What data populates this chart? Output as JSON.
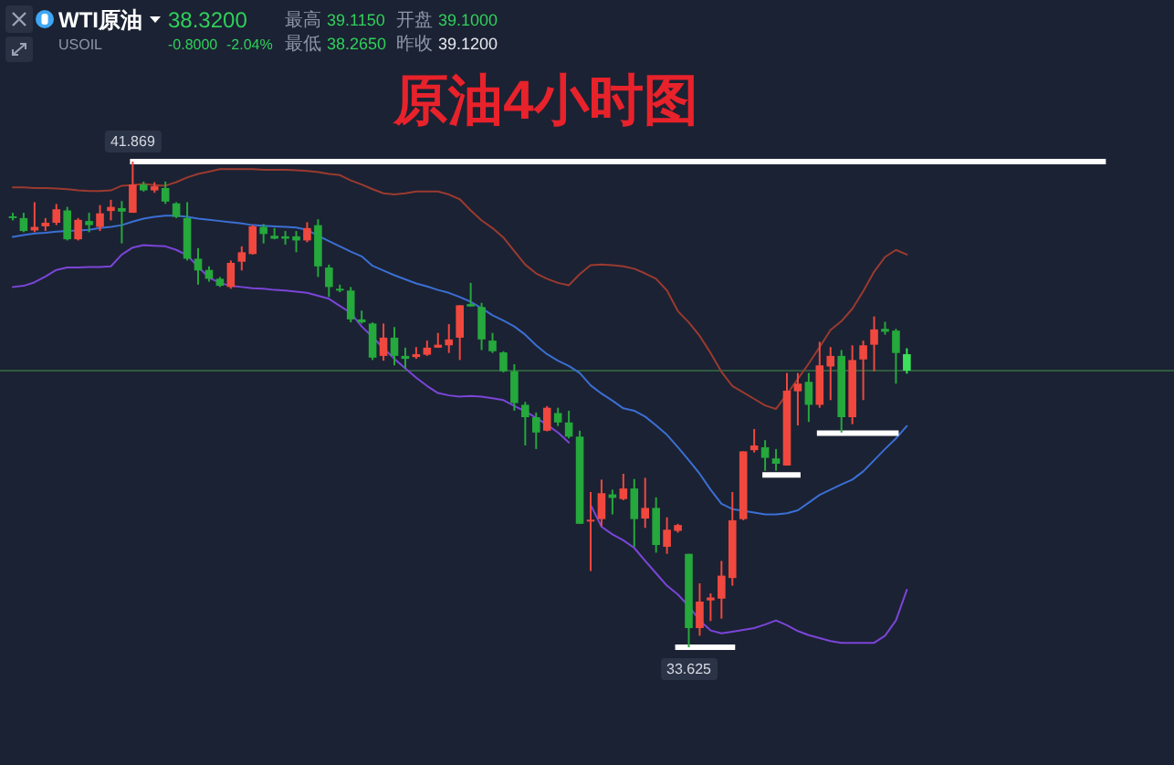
{
  "chart_data": {
    "type": "candlestick",
    "title": "原油4小时图",
    "categories": [
      null,
      null,
      null,
      null,
      null,
      null,
      null,
      null,
      null,
      null,
      null,
      null,
      null,
      null,
      null,
      null,
      null,
      null,
      null,
      null,
      null,
      null,
      null,
      null,
      null,
      null,
      null,
      null,
      null,
      null,
      null,
      null,
      null,
      null,
      null,
      null,
      null,
      null,
      null,
      null,
      null,
      null,
      null,
      null,
      null,
      null,
      null,
      null,
      null,
      null,
      null,
      null,
      null,
      null,
      null,
      null,
      null,
      null,
      null,
      null,
      null,
      null,
      null,
      null,
      null,
      null,
      null,
      null,
      null,
      null,
      null,
      null,
      null,
      null,
      null,
      null,
      null,
      null,
      null,
      null,
      null,
      null,
      null,
      null,
      null,
      null,
      null,
      null,
      null,
      null,
      null,
      null,
      null,
      null,
      null,
      null,
      null,
      null,
      null,
      null,
      null,
      null,
      null,
      null,
      null,
      null,
      null
    ],
    "ohlc": [
      [
        40.94,
        41.0,
        40.87,
        40.93
      ],
      [
        40.91,
        41.0,
        40.67,
        40.69
      ],
      [
        40.7,
        41.18,
        40.67,
        40.76
      ],
      [
        40.77,
        40.91,
        40.69,
        40.83
      ],
      [
        40.83,
        41.15,
        40.79,
        41.06
      ],
      [
        41.04,
        41.1,
        40.53,
        40.55
      ],
      [
        40.55,
        40.91,
        40.53,
        40.88
      ],
      [
        40.86,
        41.0,
        40.67,
        40.79
      ],
      [
        40.76,
        41.13,
        40.69,
        40.99
      ],
      [
        41.03,
        41.22,
        40.87,
        41.1
      ],
      [
        41.08,
        41.2,
        40.48,
        41.02
      ],
      [
        41.0,
        41.869,
        41.0,
        41.48
      ],
      [
        41.48,
        41.53,
        41.36,
        41.38
      ],
      [
        41.38,
        41.52,
        41.34,
        41.45
      ],
      [
        41.42,
        41.53,
        41.15,
        41.19
      ],
      [
        41.16,
        41.18,
        40.91,
        40.93
      ],
      [
        40.91,
        41.18,
        40.19,
        40.22
      ],
      [
        40.22,
        40.4,
        39.78,
        40.02
      ],
      [
        40.03,
        40.09,
        39.83,
        39.88
      ],
      [
        39.88,
        39.91,
        39.74,
        39.76
      ],
      [
        39.74,
        40.19,
        39.71,
        40.15
      ],
      [
        40.17,
        40.43,
        40.02,
        40.33
      ],
      [
        40.3,
        40.79,
        40.29,
        40.77
      ],
      [
        40.76,
        40.81,
        40.48,
        40.64
      ],
      [
        40.61,
        40.74,
        40.55,
        40.56
      ],
      [
        40.6,
        40.69,
        40.46,
        40.56
      ],
      [
        40.6,
        40.69,
        40.33,
        40.53
      ],
      [
        40.53,
        40.84,
        40.5,
        40.74
      ],
      [
        40.79,
        40.89,
        39.91,
        40.09
      ],
      [
        40.07,
        40.12,
        39.57,
        39.74
      ],
      [
        39.71,
        39.78,
        39.65,
        39.68
      ],
      [
        39.68,
        39.74,
        39.14,
        39.19
      ],
      [
        39.19,
        39.34,
        39.12,
        39.14
      ],
      [
        39.12,
        39.14,
        38.5,
        38.54
      ],
      [
        38.57,
        39.12,
        38.49,
        38.88
      ],
      [
        38.88,
        39.06,
        38.41,
        38.57
      ],
      [
        38.57,
        38.71,
        38.36,
        38.52
      ],
      [
        38.55,
        38.72,
        38.52,
        38.6
      ],
      [
        38.59,
        38.83,
        38.57,
        38.71
      ],
      [
        38.71,
        38.96,
        38.71,
        38.76
      ],
      [
        38.75,
        39.11,
        38.62,
        38.85
      ],
      [
        38.88,
        39.43,
        38.5,
        39.43
      ],
      [
        39.45,
        39.81,
        39.41,
        39.41
      ],
      [
        39.4,
        39.47,
        38.67,
        38.85
      ],
      [
        38.83,
        38.96,
        38.62,
        38.65
      ],
      [
        38.63,
        38.65,
        38.29,
        38.31
      ],
      [
        38.31,
        38.43,
        37.64,
        37.77
      ],
      [
        37.74,
        37.79,
        37.05,
        37.53
      ],
      [
        37.53,
        37.61,
        36.99,
        37.27
      ],
      [
        37.3,
        37.72,
        37.29,
        37.69
      ],
      [
        37.6,
        37.69,
        37.38,
        37.44
      ],
      [
        37.44,
        37.64,
        37.17,
        37.2
      ],
      [
        37.2,
        37.3,
        35.72,
        35.72
      ],
      [
        35.77,
        36.26,
        34.92,
        35.79
      ],
      [
        35.8,
        36.47,
        35.68,
        36.24
      ],
      [
        36.22,
        36.3,
        35.88,
        36.16
      ],
      [
        36.14,
        36.57,
        36.12,
        36.32
      ],
      [
        36.32,
        36.48,
        35.33,
        35.8
      ],
      [
        35.81,
        36.5,
        35.65,
        35.99
      ],
      [
        35.99,
        36.17,
        35.23,
        35.36
      ],
      [
        35.33,
        35.83,
        35.21,
        35.62
      ],
      [
        35.6,
        35.72,
        35.57,
        35.7
      ],
      [
        35.21,
        35.21,
        33.625,
        33.95
      ],
      [
        33.95,
        34.71,
        33.82,
        34.4
      ],
      [
        34.42,
        34.54,
        34.07,
        34.47
      ],
      [
        34.45,
        35.09,
        34.11,
        34.84
      ],
      [
        34.8,
        36.26,
        34.67,
        35.78
      ],
      [
        35.8,
        36.95,
        35.78,
        36.95
      ],
      [
        36.97,
        37.33,
        36.93,
        37.05
      ],
      [
        37.02,
        37.14,
        36.62,
        36.84
      ],
      [
        36.83,
        36.99,
        36.62,
        36.74
      ],
      [
        36.71,
        38.28,
        36.71,
        37.98
      ],
      [
        37.97,
        38.28,
        37.39,
        38.1
      ],
      [
        38.13,
        38.28,
        37.45,
        37.74
      ],
      [
        37.74,
        38.81,
        37.69,
        38.41
      ],
      [
        38.39,
        38.72,
        37.82,
        38.57
      ],
      [
        38.57,
        38.67,
        37.27,
        37.53
      ],
      [
        37.53,
        38.75,
        37.41,
        38.5
      ],
      [
        38.51,
        38.83,
        37.82,
        38.75
      ],
      [
        38.76,
        39.24,
        38.31,
        39.02
      ],
      [
        39.03,
        39.15,
        38.93,
        38.98
      ],
      [
        39.0,
        39.03,
        38.1,
        38.62
      ],
      [
        38.6,
        38.7,
        38.27,
        38.32
      ],
      null,
      null,
      null,
      null,
      null,
      null,
      null,
      null,
      null,
      null,
      null,
      null,
      null,
      null,
      null,
      null,
      null,
      null,
      null,
      null,
      null,
      null,
      null,
      null
    ],
    "colors": [
      "#25a83c",
      "#25a83c",
      "#f0483e",
      "#f0483e",
      "#f0483e",
      "#25a83c",
      "#f0483e",
      "#25a83c",
      "#f0483e",
      "#f0483e",
      "#25a83c",
      "#f0483e",
      "#25a83c",
      "#f0483e",
      "#25a83c",
      "#25a83c",
      "#25a83c",
      "#25a83c",
      "#25a83c",
      "#25a83c",
      "#f0483e",
      "#f0483e",
      "#f0483e",
      "#25a83c",
      "#25a83c",
      "#25a83c",
      "#25a83c",
      "#f0483e",
      "#25a83c",
      "#25a83c",
      "#25a83c",
      "#25a83c",
      "#25a83c",
      "#25a83c",
      "#f0483e",
      "#25a83c",
      "#25a83c",
      "#f0483e",
      "#f0483e",
      "#f0483e",
      "#f0483e",
      "#f0483e",
      "#25a83c",
      "#25a83c",
      "#25a83c",
      "#25a83c",
      "#25a83c",
      "#25a83c",
      "#25a83c",
      "#f0483e",
      "#25a83c",
      "#25a83c",
      "#25a83c",
      "#f0483e",
      "#f0483e",
      "#25a83c",
      "#f0483e",
      "#25a83c",
      "#f0483e",
      "#25a83c",
      "#f0483e",
      "#f0483e",
      "#25a83c",
      "#f0483e",
      "#f0483e",
      "#f0483e",
      "#f0483e",
      "#f0483e",
      "#f0483e",
      "#25a83c",
      "#25a83c",
      "#f0483e",
      "#f0483e",
      "#25a83c",
      "#f0483e",
      "#f0483e",
      "#25a83c",
      "#f0483e",
      "#f0483e",
      "#f0483e",
      "#25a83c",
      "#25a83c",
      "#3be05a",
      null,
      null,
      null,
      null,
      null,
      null,
      null,
      null,
      null,
      null,
      null,
      null,
      null,
      null,
      null,
      null,
      null,
      null,
      null,
      null,
      null,
      null,
      null,
      null
    ],
    "series": [
      {
        "type": "line",
        "color": "#9b3a30",
        "values": [
          41.43,
          41.43,
          41.42,
          41.42,
          41.41,
          41.4,
          41.38,
          41.37,
          41.37,
          41.38,
          41.46,
          41.47,
          41.49,
          41.47,
          41.46,
          41.52,
          41.6,
          41.66,
          41.7,
          41.74,
          41.74,
          41.74,
          41.74,
          41.73,
          41.73,
          41.73,
          41.72,
          41.71,
          41.69,
          41.66,
          41.64,
          41.55,
          41.48,
          41.4,
          41.33,
          41.31,
          41.33,
          41.36,
          41.36,
          41.36,
          41.31,
          41.23,
          41.04,
          40.87,
          40.74,
          40.58,
          40.35,
          40.12,
          39.97,
          39.88,
          39.81,
          39.77,
          39.96,
          40.11,
          40.12,
          40.11,
          40.09,
          40.05,
          39.97,
          39.88,
          39.68,
          39.33,
          39.14,
          38.91,
          38.62,
          38.3,
          38.06,
          37.95,
          37.84,
          37.73,
          37.67,
          37.92,
          38.18,
          38.44,
          38.72,
          39.01,
          39.16,
          39.37,
          39.67,
          40.0,
          40.25,
          40.37,
          40.29,
          null,
          null,
          null,
          null,
          null,
          null,
          null,
          null,
          null,
          null,
          null,
          null,
          null,
          null,
          null,
          null,
          null,
          null,
          null,
          null,
          null,
          null,
          null,
          null
        ]
      },
      {
        "type": "line",
        "color": "#3b6fd4",
        "values": [
          40.59,
          40.62,
          40.65,
          40.66,
          40.68,
          40.69,
          40.7,
          40.71,
          40.74,
          40.76,
          40.79,
          40.85,
          40.9,
          40.93,
          40.95,
          40.95,
          40.93,
          40.9,
          40.88,
          40.86,
          40.84,
          40.82,
          40.79,
          40.78,
          40.77,
          40.76,
          40.75,
          40.71,
          40.61,
          40.52,
          40.43,
          40.34,
          40.26,
          40.1,
          40.02,
          39.94,
          39.87,
          39.8,
          39.75,
          39.69,
          39.64,
          39.57,
          39.49,
          39.38,
          39.26,
          39.17,
          39.07,
          38.93,
          38.75,
          38.6,
          38.49,
          38.4,
          38.28,
          38.07,
          37.93,
          37.81,
          37.68,
          37.64,
          37.54,
          37.39,
          37.23,
          37.02,
          36.8,
          36.57,
          36.3,
          36.06,
          35.97,
          35.94,
          35.91,
          35.88,
          35.88,
          35.9,
          35.95,
          36.08,
          36.21,
          36.3,
          36.39,
          36.47,
          36.61,
          36.8,
          36.99,
          37.17,
          37.38,
          null,
          null,
          null,
          null,
          null,
          null,
          null,
          null,
          null,
          null,
          null,
          null,
          null,
          null,
          null,
          null,
          null,
          null,
          null,
          null,
          null,
          null,
          null,
          null
        ]
      },
      {
        "type": "line",
        "color": "#7b45d9",
        "values": [
          39.74,
          39.76,
          39.82,
          39.92,
          40.03,
          40.07,
          40.07,
          40.08,
          40.08,
          40.09,
          40.29,
          40.41,
          40.45,
          40.44,
          40.43,
          40.37,
          40.28,
          40.08,
          39.9,
          39.81,
          39.76,
          39.74,
          39.72,
          39.71,
          39.69,
          39.68,
          39.66,
          39.64,
          39.59,
          39.54,
          39.42,
          39.3,
          39.07,
          38.89,
          38.7,
          38.52,
          38.36,
          38.2,
          38.06,
          37.94,
          37.9,
          37.88,
          37.89,
          37.88,
          37.85,
          37.82,
          37.72,
          37.63,
          37.52,
          37.4,
          37.27,
          37.1,
          null,
          36.04,
          35.67,
          35.54,
          35.44,
          35.31,
          35.09,
          34.88,
          34.67,
          34.52,
          34.32,
          34.08,
          33.91,
          33.86,
          33.89,
          33.92,
          33.95,
          34.01,
          34.08,
          34.0,
          33.9,
          33.83,
          33.78,
          33.73,
          33.7,
          33.7,
          33.7,
          33.7,
          33.82,
          34.08,
          34.6,
          null,
          null,
          null,
          null,
          null,
          null,
          null,
          null,
          null,
          null,
          null,
          null,
          null,
          null,
          null,
          null,
          null,
          null,
          null,
          null,
          null,
          null,
          null,
          null
        ]
      },
      {
        "type": "line",
        "color": "#ffffff",
        "values": [
          null,
          null,
          null,
          null,
          null,
          null,
          null,
          null,
          null,
          null,
          null,
          41.869,
          41.869,
          41.869,
          41.869,
          41.869,
          41.869,
          41.869,
          41.869,
          41.869,
          41.869,
          41.869,
          41.869,
          41.869,
          41.869,
          41.869,
          41.869,
          41.869,
          41.869,
          41.869,
          41.869,
          41.869,
          41.869,
          41.869,
          41.869,
          41.869,
          41.869,
          41.869,
          41.869,
          41.869,
          41.869,
          41.869,
          41.869,
          41.869,
          41.869,
          41.869,
          41.869,
          41.869,
          41.869,
          41.869,
          41.869,
          41.869,
          41.869,
          41.869,
          41.869,
          41.869,
          41.869,
          41.869,
          41.869,
          41.869,
          41.869,
          41.869,
          41.869,
          41.869,
          41.869,
          41.869,
          41.869,
          41.869,
          41.869,
          41.869,
          41.869,
          41.869,
          41.869,
          41.869,
          41.869,
          41.869,
          41.869,
          41.869,
          41.869,
          41.869,
          41.869,
          41.869,
          41.869,
          41.869,
          41.869,
          41.869,
          41.869,
          41.869,
          41.869,
          41.869,
          41.869,
          41.869,
          41.869,
          41.869,
          41.869,
          41.869,
          41.869,
          41.869,
          41.869,
          41.869,
          41.869,
          null,
          null,
          null,
          null,
          null,
          null
        ]
      },
      {
        "type": "line",
        "color": "#ffffff",
        "values": [
          null,
          null,
          null,
          null,
          null,
          null,
          null,
          null,
          null,
          null,
          null,
          null,
          null,
          null,
          null,
          null,
          null,
          null,
          null,
          null,
          null,
          null,
          null,
          null,
          null,
          null,
          null,
          null,
          null,
          null,
          null,
          null,
          null,
          null,
          null,
          null,
          null,
          null,
          null,
          null,
          null,
          null,
          null,
          null,
          null,
          null,
          null,
          null,
          null,
          null,
          null,
          null,
          null,
          null,
          null,
          null,
          null,
          null,
          null,
          null,
          null,
          33.625,
          33.625,
          33.625,
          33.625,
          33.625,
          33.625,
          null,
          null,
          null,
          null,
          null,
          null,
          null,
          null,
          null,
          null,
          null,
          null,
          null,
          null,
          null,
          null,
          null,
          null,
          null,
          null,
          null,
          null,
          null,
          null,
          null,
          null,
          null,
          null,
          null,
          null,
          null,
          null,
          null,
          null,
          null,
          null,
          null,
          null,
          null,
          null
        ]
      },
      {
        "type": "line",
        "color": "#ffffff",
        "values": [
          null,
          null,
          null,
          null,
          null,
          null,
          null,
          null,
          null,
          null,
          null,
          null,
          null,
          null,
          null,
          null,
          null,
          null,
          null,
          null,
          null,
          null,
          null,
          null,
          null,
          null,
          null,
          null,
          null,
          null,
          null,
          null,
          null,
          null,
          null,
          null,
          null,
          null,
          null,
          null,
          null,
          null,
          null,
          null,
          null,
          null,
          null,
          null,
          null,
          null,
          null,
          null,
          null,
          null,
          null,
          null,
          null,
          null,
          null,
          null,
          null,
          null,
          null,
          null,
          null,
          null,
          null,
          null,
          null,
          36.55,
          36.55,
          36.55,
          36.55,
          null,
          null,
          null,
          null,
          null,
          null,
          null,
          null,
          null,
          null,
          null,
          null,
          null,
          null,
          null,
          null,
          null,
          null,
          null,
          null,
          null,
          null,
          null,
          null,
          null,
          null,
          null,
          null,
          null,
          null,
          null,
          null,
          null,
          null
        ]
      },
      {
        "type": "line",
        "color": "#ffffff",
        "values": [
          null,
          null,
          null,
          null,
          null,
          null,
          null,
          null,
          null,
          null,
          null,
          null,
          null,
          null,
          null,
          null,
          null,
          null,
          null,
          null,
          null,
          null,
          null,
          null,
          null,
          null,
          null,
          null,
          null,
          null,
          null,
          null,
          null,
          null,
          null,
          null,
          null,
          null,
          null,
          null,
          null,
          null,
          null,
          null,
          null,
          null,
          null,
          null,
          null,
          null,
          null,
          null,
          null,
          null,
          null,
          null,
          null,
          null,
          null,
          null,
          null,
          null,
          null,
          null,
          null,
          null,
          null,
          null,
          null,
          null,
          null,
          null,
          null,
          null,
          37.26,
          37.26,
          37.26,
          37.26,
          37.26,
          37.26,
          37.26,
          37.26,
          null,
          null,
          null,
          null,
          null,
          null,
          null,
          null,
          null,
          null,
          null,
          null,
          null,
          null,
          null,
          null,
          null,
          null,
          null,
          null,
          null,
          null,
          null,
          null,
          null
        ]
      }
    ],
    "ref_lines": [
      {
        "axis": "y",
        "value": 38.32,
        "color": "#2e5b3e"
      }
    ],
    "annotations": [
      "WTI原油",
      "USOIL",
      "38.3200",
      "-0.8000",
      "-2.04%",
      "最高",
      "39.1150",
      "开盘",
      "39.1000",
      "最低",
      "38.2650",
      "昨收",
      "39.1200",
      {
        "text": "41.869",
        "y": 41.869
      },
      {
        "text": "33.625",
        "y": 33.625
      }
    ]
  }
}
